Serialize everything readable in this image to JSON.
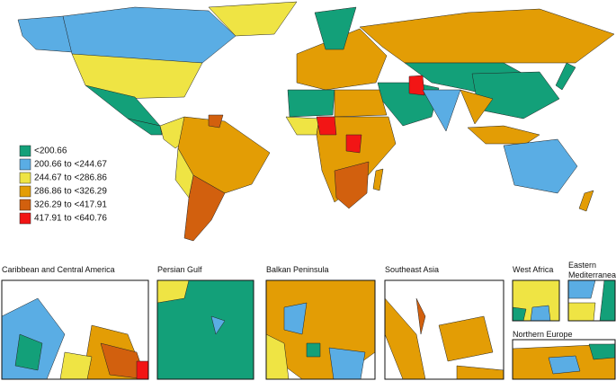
{
  "legend": {
    "items": [
      {
        "label": "<200.66",
        "color": "#13A079"
      },
      {
        "label": "200.66 to <244.67",
        "color": "#5AADE4"
      },
      {
        "label": "244.67 to <286.86",
        "color": "#EFE444"
      },
      {
        "label": "286.86 to <326.29",
        "color": "#E39D05"
      },
      {
        "label": "326.29 to <417.91",
        "color": "#D2600E"
      },
      {
        "label": "417.91 to <640.76",
        "color": "#F21515"
      }
    ]
  },
  "insets": [
    {
      "title": "Caribbean and Central America"
    },
    {
      "title": "Persian Gulf"
    },
    {
      "title": "Balkan Peninsula"
    },
    {
      "title": "Southeast Asia"
    },
    {
      "title": "West Africa"
    },
    {
      "title": "Eastern Mediterranean"
    },
    {
      "title": "Northern Europe"
    }
  ]
}
